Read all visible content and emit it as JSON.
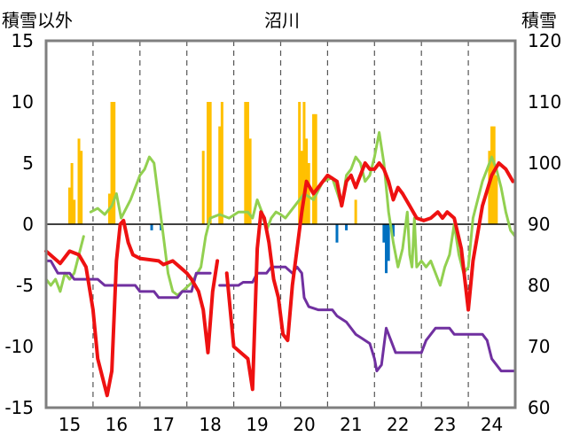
{
  "chart_data": {
    "type": "line",
    "title": "沼川",
    "ylabel_left": "積雪以外",
    "ylabel_right": "積雪",
    "x_ticks": [
      "15",
      "16",
      "17",
      "18",
      "19",
      "20",
      "21",
      "22",
      "23",
      "24"
    ],
    "xlim": [
      14.5,
      24.5
    ],
    "ylim_left": [
      -15,
      15
    ],
    "yticks_left": [
      "15",
      "10",
      "5",
      "0",
      "-5",
      "-10",
      "-15"
    ],
    "ylim_right": [
      60,
      120
    ],
    "yticks_right": [
      "120",
      "110",
      "100",
      "90",
      "80",
      "70",
      "60"
    ],
    "grid": "dashed vertical at day boundaries",
    "colors": {
      "red": "#ee1111",
      "green": "#92d050",
      "purple": "#7030a0",
      "orange": "#ffc000",
      "blue": "#0070c0",
      "frame": "#7f7f7f"
    },
    "series": [
      {
        "color": "red",
        "axis": "left",
        "points": [
          [
            14.5,
            -2.2
          ],
          [
            14.8,
            -3.2
          ],
          [
            15.0,
            -2.2
          ],
          [
            15.2,
            -2.5
          ],
          [
            15.35,
            -3.5
          ],
          [
            15.5,
            -7.0
          ],
          [
            15.6,
            -11.0
          ],
          [
            15.7,
            -12.5
          ],
          [
            15.8,
            -14.0
          ],
          [
            15.9,
            -12.0
          ],
          [
            16.0,
            -3.0
          ],
          [
            16.08,
            0.0
          ],
          [
            16.15,
            0.3
          ],
          [
            16.25,
            -1.5
          ],
          [
            16.35,
            -2.5
          ],
          [
            16.5,
            -2.8
          ],
          [
            16.7,
            -2.9
          ],
          [
            16.9,
            -3.0
          ],
          [
            17.0,
            -3.3
          ],
          [
            17.2,
            -3.0
          ],
          [
            17.35,
            -3.5
          ],
          [
            17.5,
            -4.0
          ],
          [
            17.6,
            -4.5
          ],
          [
            17.75,
            -5.5
          ],
          [
            17.85,
            -7.0
          ],
          [
            17.95,
            -10.5
          ],
          [
            18.05,
            -5.5
          ],
          [
            18.15,
            -3.0
          ]
        ]
      },
      {
        "color": "red",
        "axis": "left",
        "points": [
          [
            18.35,
            -4.0
          ],
          [
            18.5,
            -10.0
          ],
          [
            18.65,
            -10.5
          ],
          [
            18.8,
            -11.0
          ],
          [
            18.9,
            -13.5
          ],
          [
            19.0,
            -2.0
          ],
          [
            19.08,
            1.0
          ],
          [
            19.15,
            0.5
          ],
          [
            19.25,
            -1.5
          ],
          [
            19.35,
            -4.5
          ],
          [
            19.45,
            -6.0
          ],
          [
            19.55,
            -9.0
          ],
          [
            19.65,
            -9.5
          ],
          [
            19.75,
            -5.0
          ],
          [
            19.85,
            -2.0
          ],
          [
            19.95,
            1.0
          ],
          [
            20.05,
            3.5
          ],
          [
            20.2,
            2.5
          ],
          [
            20.3,
            3.0
          ],
          [
            20.5,
            4.0
          ],
          [
            20.7,
            3.5
          ],
          [
            20.8,
            1.5
          ],
          [
            20.9,
            3.5
          ],
          [
            21.0,
            4.0
          ],
          [
            21.1,
            3.0
          ],
          [
            21.3,
            5.0
          ],
          [
            21.4,
            4.5
          ],
          [
            21.5,
            4.5
          ],
          [
            21.6,
            5.0
          ],
          [
            21.7,
            4.5
          ],
          [
            21.8,
            3.5
          ],
          [
            21.9,
            2.0
          ],
          [
            22.0,
            3.0
          ],
          [
            22.1,
            2.5
          ],
          [
            22.25,
            1.5
          ],
          [
            22.4,
            0.5
          ],
          [
            22.55,
            0.3
          ],
          [
            22.7,
            0.5
          ],
          [
            22.85,
            1.0
          ],
          [
            22.95,
            0.5
          ],
          [
            23.05,
            1.0
          ],
          [
            23.2,
            0.5
          ],
          [
            23.35,
            -2.0
          ],
          [
            23.5,
            -7.0
          ],
          [
            23.6,
            -3.0
          ],
          [
            23.8,
            1.5
          ],
          [
            24.0,
            4.0
          ],
          [
            24.15,
            5.0
          ],
          [
            24.3,
            4.5
          ],
          [
            24.45,
            3.5
          ]
        ]
      },
      {
        "color": "green",
        "axis": "left",
        "points": [
          [
            14.5,
            -4.5
          ],
          [
            14.6,
            -5.0
          ],
          [
            14.7,
            -4.5
          ],
          [
            14.8,
            -5.5
          ],
          [
            14.9,
            -4.0
          ],
          [
            15.0,
            -4.5
          ],
          [
            15.1,
            -4.0
          ],
          [
            15.2,
            -2.5
          ],
          [
            15.3,
            -1.0
          ]
        ]
      },
      {
        "color": "green",
        "axis": "left",
        "points": [
          [
            15.45,
            1.0
          ],
          [
            15.6,
            1.3
          ],
          [
            15.75,
            0.8
          ],
          [
            15.9,
            1.5
          ],
          [
            16.0,
            2.5
          ],
          [
            16.1,
            0.5
          ],
          [
            16.3,
            2.0
          ],
          [
            16.5,
            4.0
          ],
          [
            16.6,
            4.5
          ],
          [
            16.7,
            5.5
          ],
          [
            16.8,
            5.0
          ],
          [
            16.9,
            2.0
          ],
          [
            17.0,
            -1.0
          ],
          [
            17.1,
            -4.0
          ],
          [
            17.2,
            -5.5
          ],
          [
            17.3,
            -5.8
          ],
          [
            17.4,
            -5.5
          ],
          [
            17.6,
            -4.8
          ],
          [
            17.8,
            -3.5
          ],
          [
            17.9,
            -1.0
          ],
          [
            18.0,
            0.5
          ],
          [
            18.2,
            0.8
          ],
          [
            18.4,
            0.5
          ],
          [
            18.6,
            1.0
          ],
          [
            18.8,
            1.0
          ],
          [
            18.9,
            0.5
          ],
          [
            19.0,
            2.0
          ],
          [
            19.1,
            1.0
          ],
          [
            19.2,
            -0.5
          ],
          [
            19.3,
            0.5
          ],
          [
            19.4,
            1.0
          ],
          [
            19.5,
            0.8
          ],
          [
            19.6,
            0.5
          ],
          [
            19.8,
            1.5
          ],
          [
            20.0,
            2.5
          ],
          [
            20.2,
            2.0
          ],
          [
            20.4,
            3.5
          ],
          [
            20.6,
            3.8
          ],
          [
            20.8,
            1.5
          ],
          [
            20.9,
            4.0
          ],
          [
            21.0,
            4.5
          ],
          [
            21.1,
            5.5
          ],
          [
            21.2,
            5.0
          ],
          [
            21.3,
            3.5
          ],
          [
            21.4,
            4.0
          ],
          [
            21.5,
            5.5
          ],
          [
            21.6,
            7.5
          ],
          [
            21.7,
            5.0
          ],
          [
            21.8,
            1.0
          ],
          [
            21.9,
            -1.5
          ],
          [
            22.0,
            -3.5
          ],
          [
            22.1,
            -2.0
          ],
          [
            22.2,
            1.0
          ],
          [
            22.25,
            -2.5
          ],
          [
            22.3,
            -3.5
          ],
          [
            22.35,
            0.5
          ],
          [
            22.4,
            -3.5
          ],
          [
            22.5,
            -3.0
          ],
          [
            22.6,
            -3.5
          ],
          [
            22.7,
            -3.0
          ],
          [
            22.8,
            -4.0
          ],
          [
            22.9,
            -5.0
          ],
          [
            23.0,
            -3.5
          ],
          [
            23.1,
            -2.5
          ],
          [
            23.2,
            0.0
          ],
          [
            23.3,
            -2.5
          ],
          [
            23.4,
            -4.0
          ],
          [
            23.5,
            -3.5
          ],
          [
            23.6,
            0.5
          ],
          [
            23.7,
            2.0
          ],
          [
            23.8,
            3.5
          ],
          [
            23.9,
            4.5
          ],
          [
            24.0,
            5.5
          ],
          [
            24.1,
            4.5
          ],
          [
            24.2,
            3.0
          ],
          [
            24.3,
            1.0
          ],
          [
            24.4,
            -0.5
          ],
          [
            24.5,
            -1.0
          ]
        ]
      },
      {
        "color": "purple",
        "axis": "right",
        "points": [
          [
            14.5,
            84.0
          ],
          [
            14.6,
            84.0
          ],
          [
            14.75,
            82.0
          ],
          [
            15.0,
            82.0
          ],
          [
            15.1,
            81.0
          ],
          [
            15.6,
            81.0
          ],
          [
            15.75,
            80.0
          ],
          [
            16.0,
            80.0
          ],
          [
            16.4,
            80.0
          ],
          [
            16.5,
            79.0
          ],
          [
            16.8,
            79.0
          ],
          [
            16.9,
            78.0
          ],
          [
            17.3,
            78.0
          ],
          [
            17.4,
            79.0
          ],
          [
            17.6,
            79.0
          ],
          [
            17.7,
            82.0
          ],
          [
            18.0,
            82.0
          ]
        ]
      },
      {
        "color": "purple",
        "axis": "right",
        "points": [
          [
            18.2,
            80.0
          ],
          [
            18.6,
            80.0
          ],
          [
            18.7,
            80.5
          ],
          [
            18.9,
            80.5
          ],
          [
            19.0,
            82.0
          ],
          [
            19.2,
            82.0
          ],
          [
            19.3,
            83.0
          ],
          [
            19.6,
            83.0
          ],
          [
            19.75,
            82.0
          ],
          [
            19.85,
            83.0
          ],
          [
            19.95,
            82.0
          ],
          [
            20.0,
            78.0
          ],
          [
            20.1,
            76.5
          ],
          [
            20.3,
            76.0
          ],
          [
            20.6,
            76.0
          ],
          [
            20.7,
            75.0
          ],
          [
            20.9,
            74.0
          ],
          [
            21.1,
            72.0
          ],
          [
            21.3,
            71.0
          ],
          [
            21.4,
            70.5
          ],
          [
            21.5,
            68.0
          ],
          [
            21.55,
            66.0
          ],
          [
            21.65,
            67.0
          ],
          [
            21.75,
            73.0
          ],
          [
            21.85,
            71.0
          ],
          [
            21.95,
            69.0
          ],
          [
            22.5,
            69.0
          ],
          [
            22.6,
            71.0
          ],
          [
            22.7,
            72.0
          ],
          [
            22.8,
            73.0
          ],
          [
            23.1,
            73.0
          ],
          [
            23.2,
            72.0
          ],
          [
            23.8,
            72.0
          ],
          [
            23.9,
            71.0
          ],
          [
            24.0,
            68.0
          ],
          [
            24.2,
            66.0
          ],
          [
            24.5,
            66.0
          ]
        ]
      }
    ],
    "bars_orange": [
      [
        15.0,
        3.0
      ],
      [
        15.05,
        5.0
      ],
      [
        15.1,
        2.0
      ],
      [
        15.2,
        7.0
      ],
      [
        15.25,
        6.0
      ],
      [
        15.85,
        2.5
      ],
      [
        15.9,
        10.0
      ],
      [
        15.95,
        10.0
      ],
      [
        17.85,
        6.0
      ],
      [
        17.95,
        10.0
      ],
      [
        18.0,
        10.0
      ],
      [
        18.2,
        8.0
      ],
      [
        18.25,
        10.0
      ],
      [
        18.75,
        10.0
      ],
      [
        18.8,
        10.0
      ],
      [
        18.85,
        7.0
      ],
      [
        19.9,
        10.0
      ],
      [
        19.95,
        6.0
      ],
      [
        20.0,
        10.0
      ],
      [
        20.05,
        7.0
      ],
      [
        20.1,
        5.0
      ],
      [
        20.2,
        9.0
      ],
      [
        20.25,
        9.0
      ],
      [
        21.1,
        2.0
      ],
      [
        23.95,
        6.0
      ],
      [
        24.0,
        8.0
      ],
      [
        24.05,
        8.0
      ],
      [
        24.1,
        4.0
      ]
    ],
    "bars_blue": [
      [
        16.75,
        -0.5
      ],
      [
        16.95,
        -0.5
      ],
      [
        20.7,
        -1.5
      ],
      [
        20.9,
        -0.5
      ],
      [
        21.7,
        -1.5
      ],
      [
        21.75,
        -4.0
      ],
      [
        21.8,
        -3.0
      ],
      [
        21.9,
        -1.0
      ]
    ]
  }
}
